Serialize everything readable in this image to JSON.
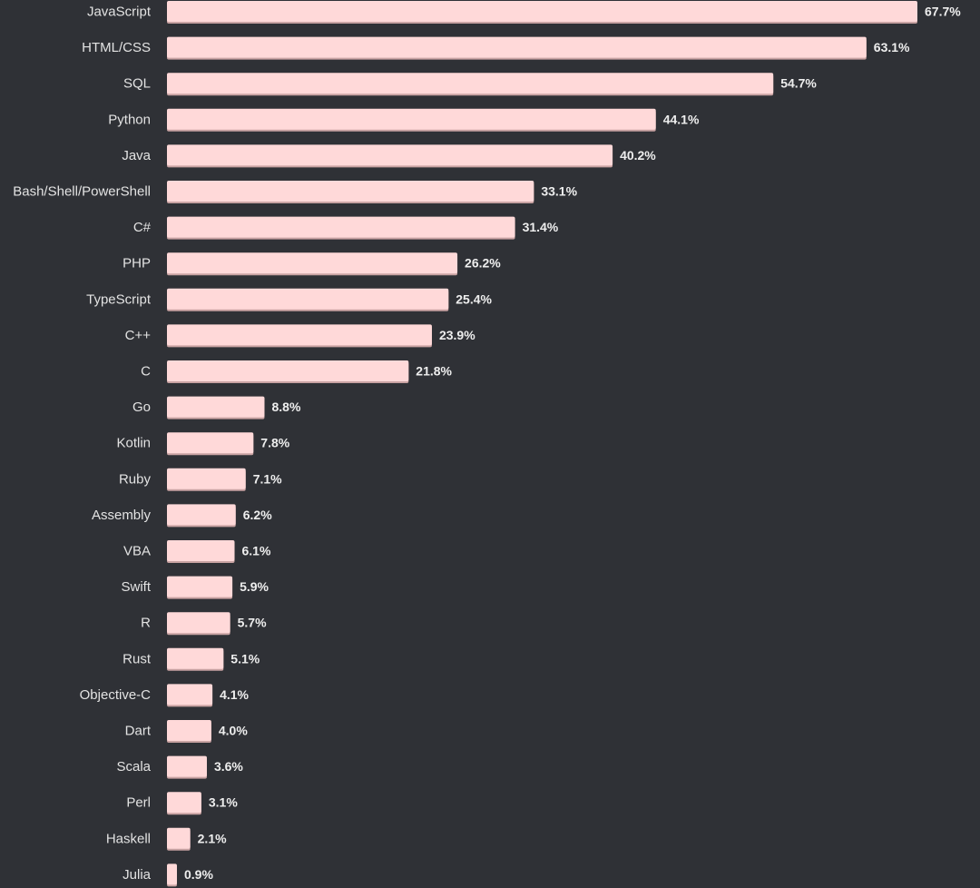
{
  "chart_data": {
    "type": "bar",
    "orientation": "horizontal",
    "categories": [
      "JavaScript",
      "HTML/CSS",
      "SQL",
      "Python",
      "Java",
      "Bash/Shell/PowerShell",
      "C#",
      "PHP",
      "TypeScript",
      "C++",
      "C",
      "Go",
      "Kotlin",
      "Ruby",
      "Assembly",
      "VBA",
      "Swift",
      "R",
      "Rust",
      "Objective-C",
      "Dart",
      "Scala",
      "Perl",
      "Haskell",
      "Julia"
    ],
    "values": [
      67.7,
      63.1,
      54.7,
      44.1,
      40.2,
      33.1,
      31.4,
      26.2,
      25.4,
      23.9,
      21.8,
      8.8,
      7.8,
      7.1,
      6.2,
      6.1,
      5.9,
      5.7,
      5.1,
      4.1,
      4.0,
      3.6,
      3.1,
      2.1,
      0.9
    ],
    "value_labels": [
      "67.7%",
      "63.1%",
      "54.7%",
      "44.1%",
      "40.2%",
      "33.1%",
      "31.4%",
      "26.2%",
      "25.4%",
      "23.9%",
      "21.8%",
      "8.8%",
      "7.8%",
      "7.1%",
      "6.2%",
      "6.1%",
      "5.9%",
      "5.7%",
      "5.1%",
      "4.1%",
      "4.0%",
      "3.6%",
      "3.1%",
      "2.1%",
      "0.9%"
    ],
    "unit": "%",
    "xlim": [
      0,
      67.7
    ],
    "grid": false,
    "legend": "none",
    "title": "",
    "xlabel": "",
    "ylabel": ""
  },
  "colors": {
    "background": "#2f3136",
    "bar": "#ffd9d9",
    "bar_shadow": "#c9a3a3",
    "category_text": "#e3e3e3",
    "value_text": "#eeeeee"
  }
}
